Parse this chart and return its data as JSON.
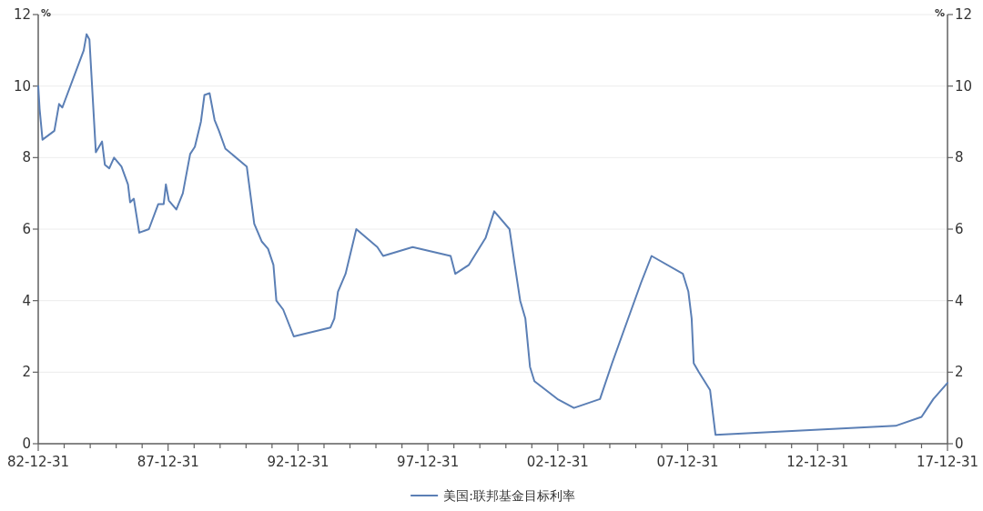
{
  "chart_data": {
    "type": "line",
    "ylabel": "%",
    "y2label": "%",
    "xlim": [
      "1982-12-31",
      "2017-12-31"
    ],
    "ylim": [
      0,
      12
    ],
    "yticks": [
      0,
      2,
      4,
      6,
      8,
      10,
      12
    ],
    "y2lim": [
      0,
      12
    ],
    "y2ticks": [
      0,
      2,
      4,
      6,
      8,
      10,
      12
    ],
    "xticks": [
      {
        "value": "1982-12-31",
        "label": "82-12-31"
      },
      {
        "value": "1983-12-31",
        "label": null
      },
      {
        "value": "1984-12-31",
        "label": null
      },
      {
        "value": "1985-12-31",
        "label": null
      },
      {
        "value": "1986-12-31",
        "label": null
      },
      {
        "value": "1987-12-31",
        "label": "87-12-31"
      },
      {
        "value": "1988-12-31",
        "label": null
      },
      {
        "value": "1989-12-31",
        "label": null
      },
      {
        "value": "1990-12-31",
        "label": null
      },
      {
        "value": "1991-12-31",
        "label": null
      },
      {
        "value": "1992-12-31",
        "label": "92-12-31"
      },
      {
        "value": "1993-12-31",
        "label": null
      },
      {
        "value": "1994-12-31",
        "label": null
      },
      {
        "value": "1995-12-31",
        "label": null
      },
      {
        "value": "1996-12-31",
        "label": null
      },
      {
        "value": "1997-12-31",
        "label": "97-12-31"
      },
      {
        "value": "1998-12-31",
        "label": null
      },
      {
        "value": "1999-12-31",
        "label": null
      },
      {
        "value": "2000-12-31",
        "label": null
      },
      {
        "value": "2001-12-31",
        "label": null
      },
      {
        "value": "2002-12-31",
        "label": "02-12-31"
      },
      {
        "value": "2003-12-31",
        "label": null
      },
      {
        "value": "2004-12-31",
        "label": null
      },
      {
        "value": "2005-12-31",
        "label": null
      },
      {
        "value": "2006-12-31",
        "label": null
      },
      {
        "value": "2007-12-31",
        "label": "07-12-31"
      },
      {
        "value": "2008-12-31",
        "label": null
      },
      {
        "value": "2009-12-31",
        "label": null
      },
      {
        "value": "2010-12-31",
        "label": null
      },
      {
        "value": "2011-12-31",
        "label": null
      },
      {
        "value": "2012-12-31",
        "label": "12-12-31"
      },
      {
        "value": "2013-12-31",
        "label": null
      },
      {
        "value": "2014-12-31",
        "label": null
      },
      {
        "value": "2015-12-31",
        "label": null
      },
      {
        "value": "2016-12-31",
        "label": null
      },
      {
        "value": "2017-12-31",
        "label": "17-12-31"
      }
    ],
    "grid": "y",
    "legend": "bottom",
    "marker": "none",
    "line_style": "solid",
    "x": [
      "1982-12-31",
      "1983-01-20",
      "1983-03-01",
      "1983-08-15",
      "1983-10-20",
      "1983-12-05",
      "1984-10-01",
      "1984-11-10",
      "1984-12-20",
      "1985-03-20",
      "1985-06-15",
      "1985-07-25",
      "1985-09-25",
      "1985-12-01",
      "1986-03-15",
      "1986-06-15",
      "1986-07-15",
      "1986-09-05",
      "1986-11-20",
      "1987-04-05",
      "1987-08-15",
      "1987-10-30",
      "1987-11-30",
      "1988-01-10",
      "1988-04-25",
      "1988-07-25",
      "1988-11-05",
      "1989-01-10",
      "1989-04-05",
      "1989-05-25",
      "1989-08-05",
      "1989-10-15",
      "1989-12-15",
      "1990-03-15",
      "1991-01-10",
      "1991-04-25",
      "1991-08-10",
      "1991-11-05",
      "1992-01-20",
      "1992-03-01",
      "1992-06-05",
      "1992-11-01",
      "1994-04-01",
      "1994-05-25",
      "1994-07-15",
      "1994-10-30",
      "1995-03-30",
      "1996-01-20",
      "1996-04-10",
      "1997-05-30",
      "1998-11-15",
      "1999-01-20",
      "1999-07-30",
      "2000-03-20",
      "2000-07-20",
      "2001-02-20",
      "2001-05-05",
      "2001-07-20",
      "2001-10-01",
      "2001-12-05",
      "2002-02-05",
      "2002-12-25",
      "2003-08-15",
      "2004-08-15",
      "2005-02-01",
      "2006-03-15",
      "2006-08-10",
      "2007-10-25",
      "2008-01-10",
      "2008-02-25",
      "2008-03-25",
      "2008-06-05",
      "2008-11-10",
      "2009-01-25",
      "2016-01-01",
      "2016-12-31",
      "2017-06-15",
      "2017-12-31"
    ],
    "series": [
      {
        "name": "美国:联邦基金目标利率",
        "color": "#5b7fb5",
        "values": [
          10.0,
          9.35,
          8.5,
          8.75,
          9.5,
          9.4,
          11.0,
          11.45,
          11.3,
          8.15,
          8.45,
          7.8,
          7.7,
          8.0,
          7.75,
          7.25,
          6.75,
          6.85,
          5.9,
          6.0,
          6.7,
          6.7,
          7.25,
          6.8,
          6.55,
          7.0,
          8.1,
          8.3,
          9.0,
          9.75,
          9.8,
          9.05,
          8.75,
          8.25,
          7.75,
          6.15,
          5.65,
          5.45,
          5.0,
          4.0,
          3.75,
          3.0,
          3.25,
          3.5,
          4.25,
          4.75,
          6.0,
          5.5,
          5.25,
          5.5,
          5.25,
          4.75,
          5.0,
          5.75,
          6.5,
          6.0,
          5.0,
          4.0,
          3.5,
          2.15,
          1.75,
          1.25,
          1.0,
          1.25,
          2.25,
          4.5,
          5.25,
          4.75,
          4.25,
          3.5,
          2.25,
          2.0,
          1.5,
          0.25,
          0.5,
          0.75,
          1.25,
          1.7
        ]
      }
    ]
  }
}
